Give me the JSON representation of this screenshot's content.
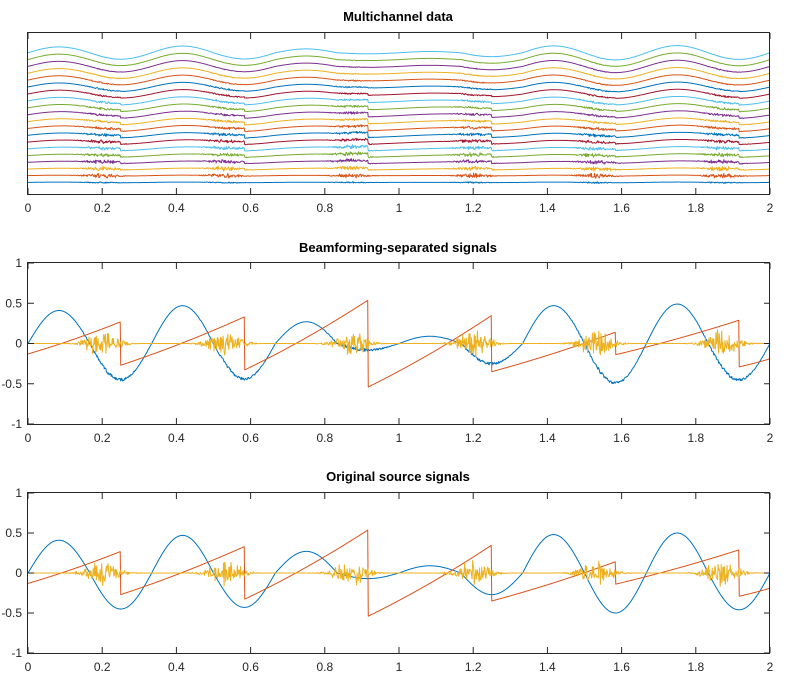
{
  "chart_data": [
    {
      "id": "multichannel",
      "type": "line",
      "title": "Multichannel data",
      "xlabel": "",
      "ylabel": "",
      "xlim": [
        0,
        2
      ],
      "xticks": [
        0,
        0.2,
        0.4,
        0.6,
        0.8,
        1,
        1.2,
        1.4,
        1.6,
        1.8,
        2
      ],
      "xtick_labels": [
        "0",
        "0.2",
        "0.4",
        "0.6",
        "0.8",
        "1",
        "1.2",
        "1.4",
        "1.6",
        "1.8",
        "2"
      ],
      "yticks": [],
      "ytick_labels": [],
      "grid": false,
      "legend": "none",
      "channel_count": 20,
      "description": "20 stacked sensor channels, each a mixture of the three source signals (sine, sawtooth, noise bursts) with increasing vertical offset; upper channels dominated by the sine, lower channels by the noise bursts and sawtooth jumps",
      "channel_colors": [
        "#0072BD",
        "#D95319",
        "#EDB120",
        "#7E2F8E",
        "#77AC30",
        "#4DBEEE",
        "#A2142F"
      ]
    },
    {
      "id": "beamforming",
      "type": "line",
      "title": "Beamforming-separated signals",
      "xlabel": "",
      "ylabel": "",
      "xlim": [
        0,
        2
      ],
      "ylim": [
        -1,
        1
      ],
      "xticks": [
        0,
        0.2,
        0.4,
        0.6,
        0.8,
        1,
        1.2,
        1.4,
        1.6,
        1.8,
        2
      ],
      "xtick_labels": [
        "0",
        "0.2",
        "0.4",
        "0.6",
        "0.8",
        "1",
        "1.2",
        "1.4",
        "1.6",
        "1.8",
        "2"
      ],
      "yticks": [
        -1,
        -0.5,
        0,
        0.5,
        1
      ],
      "ytick_labels": [
        "-1",
        "-0.5",
        "0",
        "0.5",
        "1"
      ],
      "grid": false,
      "legend": "none",
      "noisy_estimate": true,
      "series": [
        {
          "name": "sine",
          "color": "#0072BD",
          "segment_peaks": [
            0.41,
            -0.45,
            0.47,
            -0.44,
            0.27,
            -0.08,
            0.09,
            -0.25,
            0.47,
            -0.49,
            0.49,
            -0.45
          ]
        },
        {
          "name": "sawtooth",
          "color": "#D95319",
          "period_start_end": [
            [
              -0.13,
              0.27
            ],
            [
              -0.27,
              0.33
            ],
            [
              -0.33,
              0.54
            ],
            [
              -0.54,
              0.35
            ],
            [
              -0.35,
              0.14
            ],
            [
              -0.14,
              0.29
            ],
            [
              -0.29,
              -0.19
            ]
          ],
          "jump_x": [
            0.25,
            0.583,
            0.917,
            1.25,
            1.583,
            1.917
          ]
        },
        {
          "name": "noise-bursts",
          "color": "#EDB120",
          "burst_centers": [
            0.2,
            0.53,
            0.87,
            1.2,
            1.53,
            1.87
          ],
          "amplitude": 0.15
        }
      ]
    },
    {
      "id": "original",
      "type": "line",
      "title": "Original source signals",
      "xlabel": "",
      "ylabel": "",
      "xlim": [
        0,
        2
      ],
      "ylim": [
        -1,
        1
      ],
      "xticks": [
        0,
        0.2,
        0.4,
        0.6,
        0.8,
        1,
        1.2,
        1.4,
        1.6,
        1.8,
        2
      ],
      "xtick_labels": [
        "0",
        "0.2",
        "0.4",
        "0.6",
        "0.8",
        "1",
        "1.2",
        "1.4",
        "1.6",
        "1.8",
        "2"
      ],
      "yticks": [
        -1,
        -0.5,
        0,
        0.5,
        1
      ],
      "ytick_labels": [
        "-1",
        "-0.5",
        "0",
        "0.5",
        "1"
      ],
      "grid": false,
      "legend": "none",
      "noisy_estimate": false,
      "series": [
        {
          "name": "sine",
          "color": "#0072BD",
          "segment_peaks": [
            0.41,
            -0.45,
            0.47,
            -0.43,
            0.27,
            -0.07,
            0.09,
            -0.27,
            0.48,
            -0.5,
            0.5,
            -0.46
          ]
        },
        {
          "name": "sawtooth",
          "color": "#D95319",
          "period_start_end": [
            [
              -0.13,
              0.27
            ],
            [
              -0.27,
              0.33
            ],
            [
              -0.33,
              0.54
            ],
            [
              -0.54,
              0.35
            ],
            [
              -0.35,
              0.14
            ],
            [
              -0.14,
              0.29
            ],
            [
              -0.29,
              -0.19
            ]
          ],
          "jump_x": [
            0.25,
            0.583,
            0.917,
            1.25,
            1.583,
            1.917
          ]
        },
        {
          "name": "noise-bursts",
          "color": "#EDB120",
          "burst_centers": [
            0.2,
            0.53,
            0.87,
            1.2,
            1.53,
            1.87
          ],
          "amplitude": 0.15
        }
      ]
    }
  ]
}
